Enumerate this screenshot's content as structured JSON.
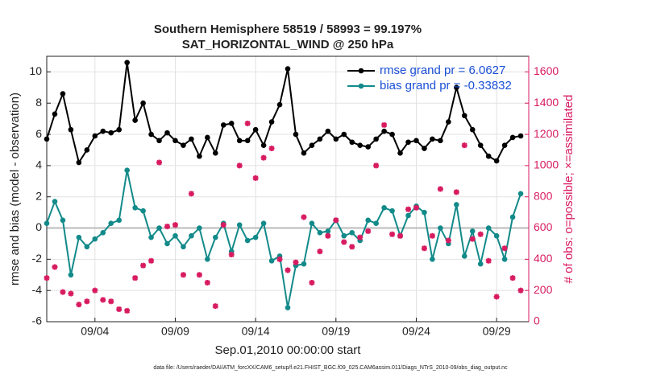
{
  "chart_data": {
    "type": "line",
    "title": "Southern Hemisphere 58519 / 58993 = 99.197%",
    "subtitle": "SAT_HORIZONTAL_WIND @ 250 hPa",
    "xlabel": "Sep.01,2010 00:00:00 start",
    "ylabel": "rmse and bias (model - observation)",
    "y2label": "# of obs: o=possible; ×=assimilated",
    "footnote": "data file: /Users/raeder/DAI/ATM_forcXX/CAM6_setup/f.e21.FHIST_BGC.f09_025.CAM6assim.011/Diags_NTrS_2010-09/obs_diag_output.nc",
    "x": [
      0,
      0.5,
      1,
      1.5,
      2,
      2.5,
      3,
      3.5,
      4,
      4.5,
      5,
      5.5,
      6,
      6.5,
      7,
      7.5,
      8,
      8.5,
      9,
      9.5,
      10,
      10.5,
      11,
      11.5,
      12,
      12.5,
      13,
      13.5,
      14,
      14.5,
      15,
      15.5,
      16,
      16.5,
      17,
      17.5,
      18,
      18.5,
      19,
      19.5,
      20,
      20.5,
      21,
      21.5,
      22,
      22.5,
      23,
      23.5,
      24,
      24.5,
      25,
      25.5,
      26,
      26.5,
      27,
      27.5,
      28,
      28.5,
      29,
      29.5
    ],
    "xlim": [
      0,
      30
    ],
    "xticks": [
      {
        "value": 3,
        "label": "09/04"
      },
      {
        "value": 8,
        "label": "09/09"
      },
      {
        "value": 13,
        "label": "09/14"
      },
      {
        "value": 18,
        "label": "09/19"
      },
      {
        "value": 23,
        "label": "09/24"
      },
      {
        "value": 28,
        "label": "09/29"
      }
    ],
    "ylim": [
      -6,
      11
    ],
    "yticks": [
      -6,
      -4,
      -2,
      0,
      2,
      4,
      6,
      8,
      10
    ],
    "y2lim": [
      0,
      1700
    ],
    "y2ticks": [
      0,
      200,
      400,
      600,
      800,
      1000,
      1200,
      1400,
      1600
    ],
    "grid": true,
    "legend": "upper right",
    "series": [
      {
        "name": "rmse grand pr = 6.0627",
        "color": "#000000",
        "type": "line",
        "values": [
          5.7,
          7.3,
          8.6,
          6.3,
          4.2,
          5.0,
          5.9,
          6.2,
          6.1,
          6.3,
          10.6,
          6.9,
          8.0,
          6.0,
          5.6,
          6.1,
          5.6,
          5.3,
          5.7,
          4.6,
          5.8,
          4.8,
          6.6,
          6.7,
          5.6,
          5.6,
          6.3,
          5.3,
          6.8,
          7.9,
          10.2,
          6.0,
          4.8,
          5.3,
          5.7,
          6.2,
          5.7,
          6.0,
          5.5,
          5.3,
          5.2,
          5.7,
          6.2,
          6.0,
          4.8,
          5.5,
          5.6,
          5.1,
          5.7,
          5.6,
          6.8,
          9.0,
          7.2,
          6.3,
          5.3,
          4.6,
          4.3,
          5.3,
          5.8,
          5.9
        ]
      },
      {
        "name": "bias grand pr = -0.33832",
        "color": "#138a8a",
        "type": "line",
        "values": [
          0.3,
          1.7,
          0.5,
          -3.0,
          -0.6,
          -1.2,
          -0.7,
          -0.3,
          0.3,
          0.5,
          3.7,
          1.3,
          1.1,
          -0.6,
          0.0,
          -1.0,
          -0.5,
          -1.2,
          -0.5,
          0.0,
          -2.0,
          -0.6,
          0.3,
          -1.5,
          0.2,
          -0.8,
          -0.6,
          0.3,
          -2.1,
          -1.8,
          -5.1,
          -2.4,
          -2.3,
          0.3,
          -0.3,
          -0.2,
          0.5,
          -0.5,
          -0.3,
          -0.8,
          0.5,
          0.3,
          1.3,
          1.1,
          -0.5,
          0.8,
          1.4,
          1.0,
          -2.0,
          0.0,
          -1.0,
          1.5,
          -1.8,
          -0.2,
          -2.3,
          0.0,
          -0.5,
          -2.0,
          0.7,
          2.2
        ]
      },
      {
        "color": "#d81b60",
        "type": "scatter",
        "axis": "y2",
        "values": [
          280,
          350,
          190,
          180,
          110,
          130,
          200,
          140,
          130,
          80,
          70,
          280,
          360,
          390,
          1020,
          610,
          620,
          300,
          820,
          300,
          250,
          100,
          620,
          430,
          1000,
          1270,
          920,
          1050,
          1110,
          400,
          330,
          380,
          670,
          250,
          450,
          550,
          650,
          510,
          480,
          540,
          580,
          1000,
          1260,
          560,
          550,
          720,
          730,
          470,
          550,
          850,
          520,
          830,
          1130,
          530,
          560,
          390,
          160,
          470,
          280,
          200
        ]
      }
    ]
  }
}
